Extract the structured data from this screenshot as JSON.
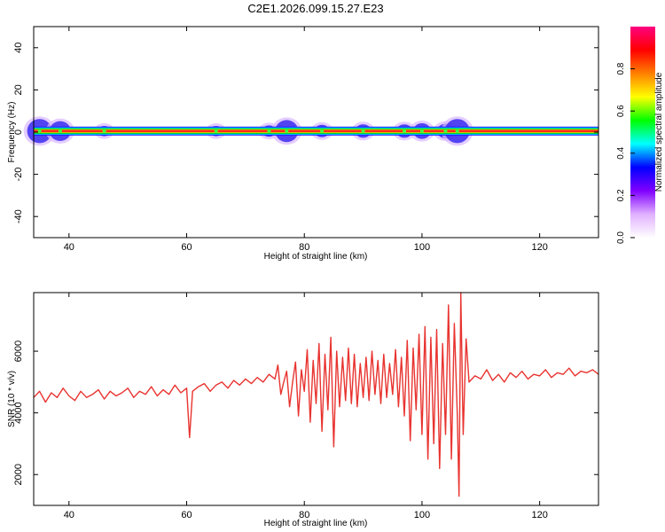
{
  "figure_title": "C2E1.2026.099.15.27.E23",
  "chart_data": [
    {
      "type": "heatmap",
      "title": "",
      "xlabel": "Height of straight line (km)",
      "ylabel": "Frequency (Hz)",
      "xlim": [
        34,
        130
      ],
      "ylim": [
        -50,
        50
      ],
      "xticks": [
        40,
        60,
        80,
        100,
        120
      ],
      "yticks": [
        -40,
        -20,
        0,
        20,
        40
      ],
      "ridge_frequency_hz": 0.5,
      "disturbances": [
        {
          "x": 35,
          "spread": 1.6
        },
        {
          "x": 38.5,
          "spread": 1.2
        },
        {
          "x": 46,
          "spread": 0.3
        },
        {
          "x": 65,
          "spread": 0.3
        },
        {
          "x": 74,
          "spread": 0.4
        },
        {
          "x": 77,
          "spread": 1.4
        },
        {
          "x": 83,
          "spread": 0.5
        },
        {
          "x": 90,
          "spread": 0.6
        },
        {
          "x": 97,
          "spread": 0.6
        },
        {
          "x": 100,
          "spread": 0.8
        },
        {
          "x": 104,
          "spread": 0.7
        },
        {
          "x": 106,
          "spread": 1.6
        }
      ],
      "colorbar": {
        "label": "Normalized spectral amplitude",
        "range": [
          0,
          1
        ],
        "ticks": [
          0.0,
          0.2,
          0.4,
          0.6,
          0.8
        ],
        "colors": [
          "#ffffff",
          "#e0b0ff",
          "#8000ff",
          "#0000ff",
          "#00ffff",
          "#00ff00",
          "#ffff00",
          "#ff8000",
          "#ff0000",
          "#ff0080"
        ]
      }
    },
    {
      "type": "line",
      "title": "",
      "xlabel": "Height of straight line (km)",
      "ylabel": "SNR (10 * v/v)",
      "xlim": [
        34,
        130
      ],
      "ylim": [
        1000,
        7900
      ],
      "xticks": [
        40,
        60,
        80,
        100,
        120
      ],
      "yticks": [
        2000,
        4000,
        6000
      ],
      "color": "#e8332f",
      "x": [
        34,
        35,
        36,
        37,
        38,
        39,
        40,
        41,
        42,
        43,
        44,
        45,
        46,
        47,
        48,
        49,
        50,
        51,
        52,
        53,
        54,
        55,
        56,
        57,
        58,
        59,
        60,
        60.5,
        61,
        62,
        63,
        64,
        65,
        66,
        67,
        68,
        69,
        70,
        71,
        72,
        73,
        74,
        75,
        75.5,
        76,
        76.5,
        77,
        77.5,
        78,
        78.5,
        79,
        79.5,
        80,
        80.5,
        81,
        81.5,
        82,
        82.5,
        83,
        83.5,
        84,
        84.5,
        85,
        85.5,
        86,
        86.5,
        87,
        87.5,
        88,
        88.5,
        89,
        89.5,
        90,
        90.5,
        91,
        91.5,
        92,
        92.5,
        93,
        93.5,
        94,
        94.5,
        95,
        95.5,
        96,
        96.5,
        97,
        97.5,
        98,
        98.5,
        99,
        99.5,
        100,
        100.5,
        101,
        101.5,
        102,
        102.5,
        103,
        103.5,
        104,
        104.5,
        105,
        105.5,
        106,
        106.3,
        106.6,
        107,
        107.5,
        108,
        109,
        110,
        111,
        112,
        113,
        114,
        115,
        116,
        117,
        118,
        119,
        120,
        121,
        122,
        123,
        124,
        125,
        126,
        127,
        128,
        129,
        130
      ],
      "y": [
        4500,
        4700,
        4350,
        4650,
        4500,
        4800,
        4550,
        4400,
        4700,
        4500,
        4600,
        4750,
        4450,
        4700,
        4550,
        4650,
        4800,
        4500,
        4700,
        4600,
        4850,
        4550,
        4750,
        4600,
        4900,
        4650,
        4800,
        3200,
        4700,
        4850,
        4950,
        4700,
        4900,
        5000,
        4800,
        5050,
        4900,
        5100,
        4950,
        5150,
        5000,
        5250,
        5100,
        5550,
        4600,
        5000,
        5350,
        4200,
        5000,
        5650,
        3900,
        5400,
        4700,
        6050,
        3700,
        5700,
        4300,
        6250,
        3400,
        5900,
        4100,
        6450,
        2900,
        6000,
        4200,
        5800,
        4400,
        6100,
        4300,
        5900,
        4200,
        5600,
        4500,
        5800,
        4400,
        6000,
        4600,
        5700,
        4300,
        5900,
        4500,
        5600,
        4600,
        6050,
        4200,
        5800,
        3900,
        6350,
        3100,
        6100,
        4100,
        6550,
        3300,
        6800,
        2500,
        6450,
        3000,
        6700,
        2200,
        6250,
        3300,
        7500,
        2500,
        6900,
        3900,
        1300,
        7900,
        3300,
        6400,
        5000,
        5200,
        5100,
        5400,
        5050,
        5250,
        5000,
        5300,
        5150,
        5350,
        5100,
        5250,
        5200,
        5400,
        5150,
        5300,
        5250,
        5450,
        5200,
        5350,
        5300,
        5400,
        5250
      ]
    }
  ]
}
